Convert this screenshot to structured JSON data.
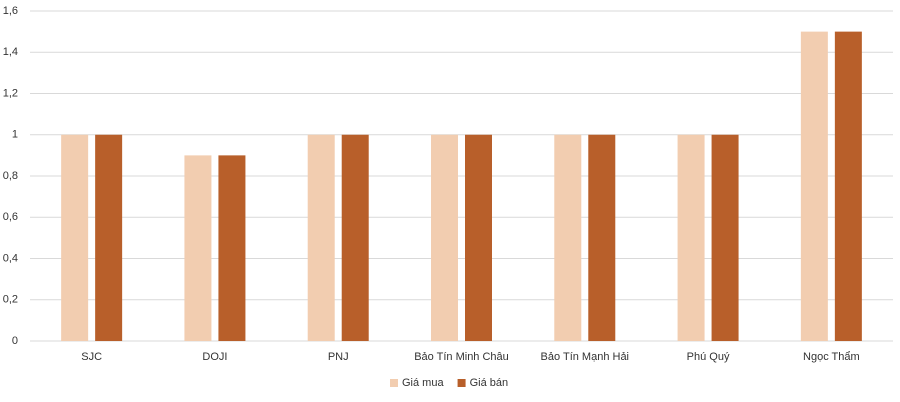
{
  "chart_data": {
    "type": "bar",
    "categories": [
      "SJC",
      "DOJI",
      "PNJ",
      "Bảo Tín Minh Châu",
      "Bảo Tín Mạnh Hải",
      "Phú Quý",
      "Ngọc Thẩm"
    ],
    "series": [
      {
        "name": "Giá mua",
        "color": "#f2cdb0",
        "values": [
          1,
          0.9,
          1,
          1,
          1,
          1,
          1.5
        ]
      },
      {
        "name": "Giá bán",
        "color": "#b85f2a",
        "values": [
          1,
          0.9,
          1,
          1,
          1,
          1,
          1.5
        ]
      }
    ],
    "ylim": [
      0,
      1.6
    ],
    "yticks": [
      0,
      {
        "value": 0.2,
        "label": "0,2"
      },
      {
        "value": 0.4,
        "label": "0,4"
      },
      {
        "value": 0.6,
        "label": "0,6"
      },
      {
        "value": 0.8,
        "label": "0,8"
      },
      1,
      {
        "value": 1.2,
        "label": "1,2"
      },
      {
        "value": 1.4,
        "label": "1,4"
      },
      {
        "value": 1.6,
        "label": "1,6"
      }
    ],
    "grid": true,
    "legend": "bottom"
  }
}
